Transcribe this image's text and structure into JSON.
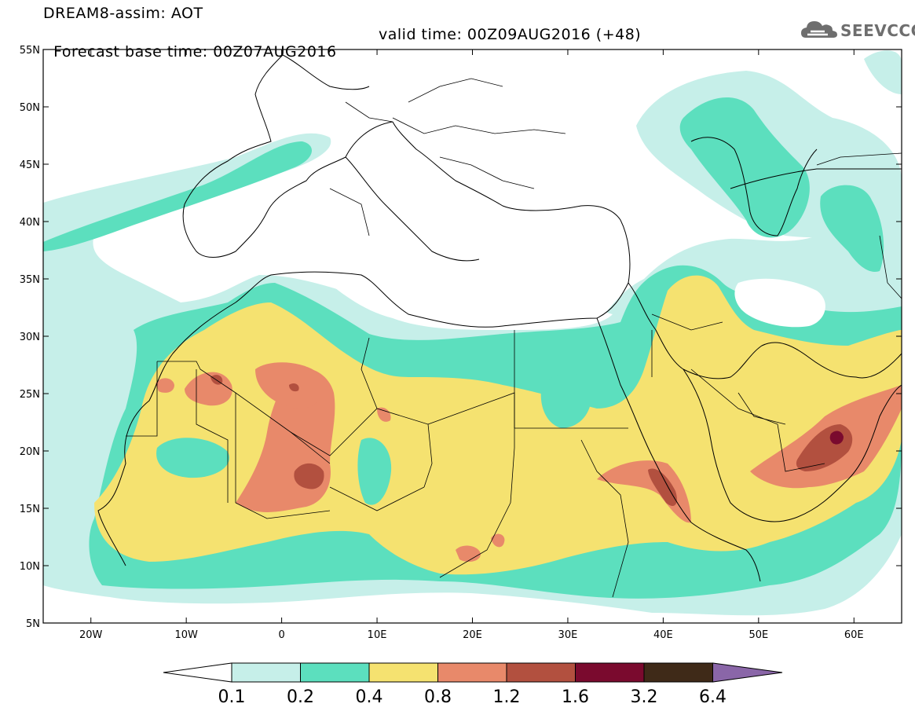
{
  "header": {
    "line1": "DREAM8-assim: AOT",
    "line2": "Forecast base time: 00Z07AUG2016",
    "valid": "valid time: 00Z09AUG2016 (+48)",
    "logo": "SEEVCCC"
  },
  "map": {
    "lon_range": [
      -25,
      65
    ],
    "lat_range": [
      5,
      55
    ],
    "lat_ticks": [
      "5N",
      "10N",
      "15N",
      "20N",
      "25N",
      "30N",
      "35N",
      "40N",
      "45N",
      "50N",
      "55N"
    ],
    "lon_ticks": [
      "20W",
      "10W",
      "0",
      "10E",
      "20E",
      "30E",
      "40E",
      "50E",
      "60E"
    ]
  },
  "legend": {
    "bins": [
      {
        "from": "0.1",
        "to": "0.2",
        "color": "#c6efe9"
      },
      {
        "from": "0.2",
        "to": "0.4",
        "color": "#5cdfbe"
      },
      {
        "from": "0.4",
        "to": "0.8",
        "color": "#f5e270"
      },
      {
        "from": "0.8",
        "to": "1.2",
        "color": "#e8896a"
      },
      {
        "from": "1.2",
        "to": "1.6",
        "color": "#b2503f"
      },
      {
        "from": "1.6",
        "to": "3.2",
        "color": "#7a0a2e"
      },
      {
        "from": "3.2",
        "to": "6.4",
        "color": "#3f2a18"
      }
    ],
    "over_color": "#8a66a8",
    "labels": [
      "0.1",
      "0.2",
      "0.4",
      "0.8",
      "1.2",
      "1.6",
      "3.2",
      "6.4"
    ]
  }
}
